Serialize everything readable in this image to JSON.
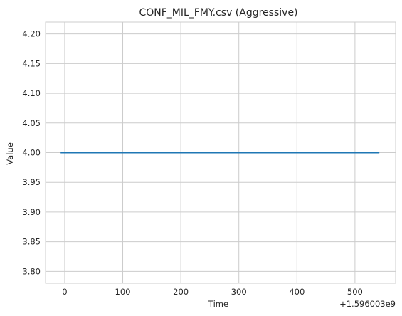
{
  "chart_data": {
    "type": "line",
    "title": "CONF_MIL_FMY.csv (Aggressive)",
    "xlabel": "Time",
    "ylabel": "Value",
    "x_offset_label": "+1.596003e9",
    "xlim": [
      -33,
      570
    ],
    "ylim": [
      3.78,
      4.22
    ],
    "xticks": [
      0,
      100,
      200,
      300,
      400,
      500
    ],
    "yticks": [
      3.8,
      3.85,
      3.9,
      3.95,
      4.0,
      4.05,
      4.1,
      4.15,
      4.2
    ],
    "ytick_labels": [
      "3.80",
      "3.85",
      "3.90",
      "3.95",
      "4.00",
      "4.05",
      "4.10",
      "4.15",
      "4.20"
    ],
    "grid": true,
    "series": [
      {
        "x": [
          -7,
          542
        ],
        "values": [
          4.0,
          4.0
        ],
        "color": "#1f77b4"
      }
    ]
  }
}
